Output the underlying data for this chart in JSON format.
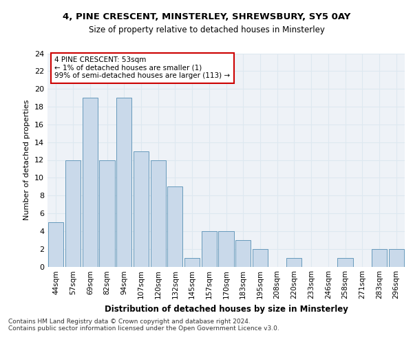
{
  "title1": "4, PINE CRESCENT, MINSTERLEY, SHREWSBURY, SY5 0AY",
  "title2": "Size of property relative to detached houses in Minsterley",
  "xlabel": "Distribution of detached houses by size in Minsterley",
  "ylabel": "Number of detached properties",
  "categories": [
    "44sqm",
    "57sqm",
    "69sqm",
    "82sqm",
    "94sqm",
    "107sqm",
    "120sqm",
    "132sqm",
    "145sqm",
    "157sqm",
    "170sqm",
    "183sqm",
    "195sqm",
    "208sqm",
    "220sqm",
    "233sqm",
    "246sqm",
    "258sqm",
    "271sqm",
    "283sqm",
    "296sqm"
  ],
  "values": [
    5,
    12,
    19,
    12,
    19,
    13,
    12,
    9,
    1,
    4,
    4,
    3,
    2,
    0,
    1,
    0,
    0,
    1,
    0,
    2,
    2
  ],
  "bar_color": "#c9d9ea",
  "bar_edge_color": "#6699bb",
  "annotation_text": "4 PINE CRESCENT: 53sqm\n← 1% of detached houses are smaller (1)\n99% of semi-detached houses are larger (113) →",
  "annotation_box_color": "#ffffff",
  "annotation_box_edge_color": "#cc0000",
  "ylim": [
    0,
    24
  ],
  "yticks": [
    0,
    2,
    4,
    6,
    8,
    10,
    12,
    14,
    16,
    18,
    20,
    22,
    24
  ],
  "footer_text": "Contains HM Land Registry data © Crown copyright and database right 2024.\nContains public sector information licensed under the Open Government Licence v3.0.",
  "grid_color": "#dde8f0",
  "bg_color": "#eef2f7"
}
